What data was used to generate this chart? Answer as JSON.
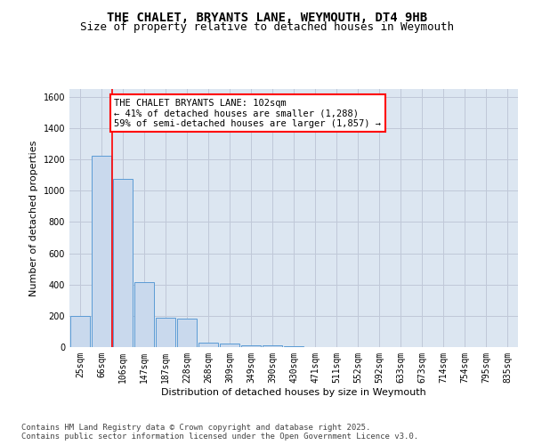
{
  "title": "THE CHALET, BRYANTS LANE, WEYMOUTH, DT4 9HB",
  "subtitle": "Size of property relative to detached houses in Weymouth",
  "xlabel": "Distribution of detached houses by size in Weymouth",
  "ylabel": "Number of detached properties",
  "categories": [
    "25sqm",
    "66sqm",
    "106sqm",
    "147sqm",
    "187sqm",
    "228sqm",
    "268sqm",
    "309sqm",
    "349sqm",
    "390sqm",
    "430sqm",
    "471sqm",
    "511sqm",
    "552sqm",
    "592sqm",
    "633sqm",
    "673sqm",
    "714sqm",
    "754sqm",
    "795sqm",
    "835sqm"
  ],
  "values": [
    200,
    1225,
    1075,
    415,
    185,
    180,
    30,
    25,
    12,
    10,
    5,
    0,
    0,
    0,
    0,
    0,
    0,
    0,
    0,
    0,
    0
  ],
  "bar_color": "#c9d9ed",
  "bar_edge_color": "#5b9bd5",
  "grid_color": "#c0c8d8",
  "background_color": "#dce6f1",
  "vline_color": "red",
  "annotation_text": "THE CHALET BRYANTS LANE: 102sqm\n← 41% of detached houses are smaller (1,288)\n59% of semi-detached houses are larger (1,857) →",
  "footnote": "Contains HM Land Registry data © Crown copyright and database right 2025.\nContains public sector information licensed under the Open Government Licence v3.0.",
  "ylim": [
    0,
    1650
  ],
  "yticks": [
    0,
    200,
    400,
    600,
    800,
    1000,
    1200,
    1400,
    1600
  ],
  "title_fontsize": 10,
  "subtitle_fontsize": 9,
  "ylabel_fontsize": 8,
  "xlabel_fontsize": 8,
  "tick_fontsize": 7,
  "annotation_fontsize": 7.5,
  "footnote_fontsize": 6.5
}
